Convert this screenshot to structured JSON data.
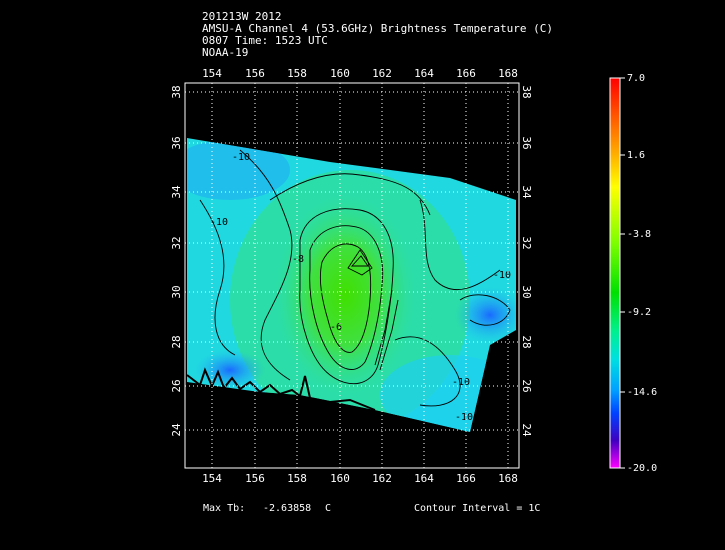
{
  "header": {
    "line1": "201213W 2012",
    "line2": "AMSU-A Channel 4 (53.6GHz) Brightness Temperature (C)",
    "line3": "0807 Time: 1523 UTC",
    "line4": "NOAA-19"
  },
  "map": {
    "lon_ticks": [
      "154",
      "156",
      "158",
      "160",
      "162",
      "164",
      "166",
      "168"
    ],
    "lat_ticks": [
      "24",
      "26",
      "28",
      "30",
      "32",
      "34",
      "36",
      "38"
    ],
    "contour_labels": [
      "-10",
      "-8",
      "-6",
      "-10",
      "-10",
      "-10",
      "-10"
    ]
  },
  "colorbar": {
    "labels": [
      "7.0",
      "1.6",
      "-3.8",
      "-9.2",
      "-14.6",
      "-20.0"
    ],
    "colors": [
      "#ff0000",
      "#ffff00",
      "#00e000",
      "#00e0e0",
      "#0000ff",
      "#ff00ff"
    ]
  },
  "footer": {
    "max_label": "Max Tb:",
    "max_value": "-2.63858",
    "max_unit": "C",
    "contour_interval": "Contour Interval = 1C"
  }
}
